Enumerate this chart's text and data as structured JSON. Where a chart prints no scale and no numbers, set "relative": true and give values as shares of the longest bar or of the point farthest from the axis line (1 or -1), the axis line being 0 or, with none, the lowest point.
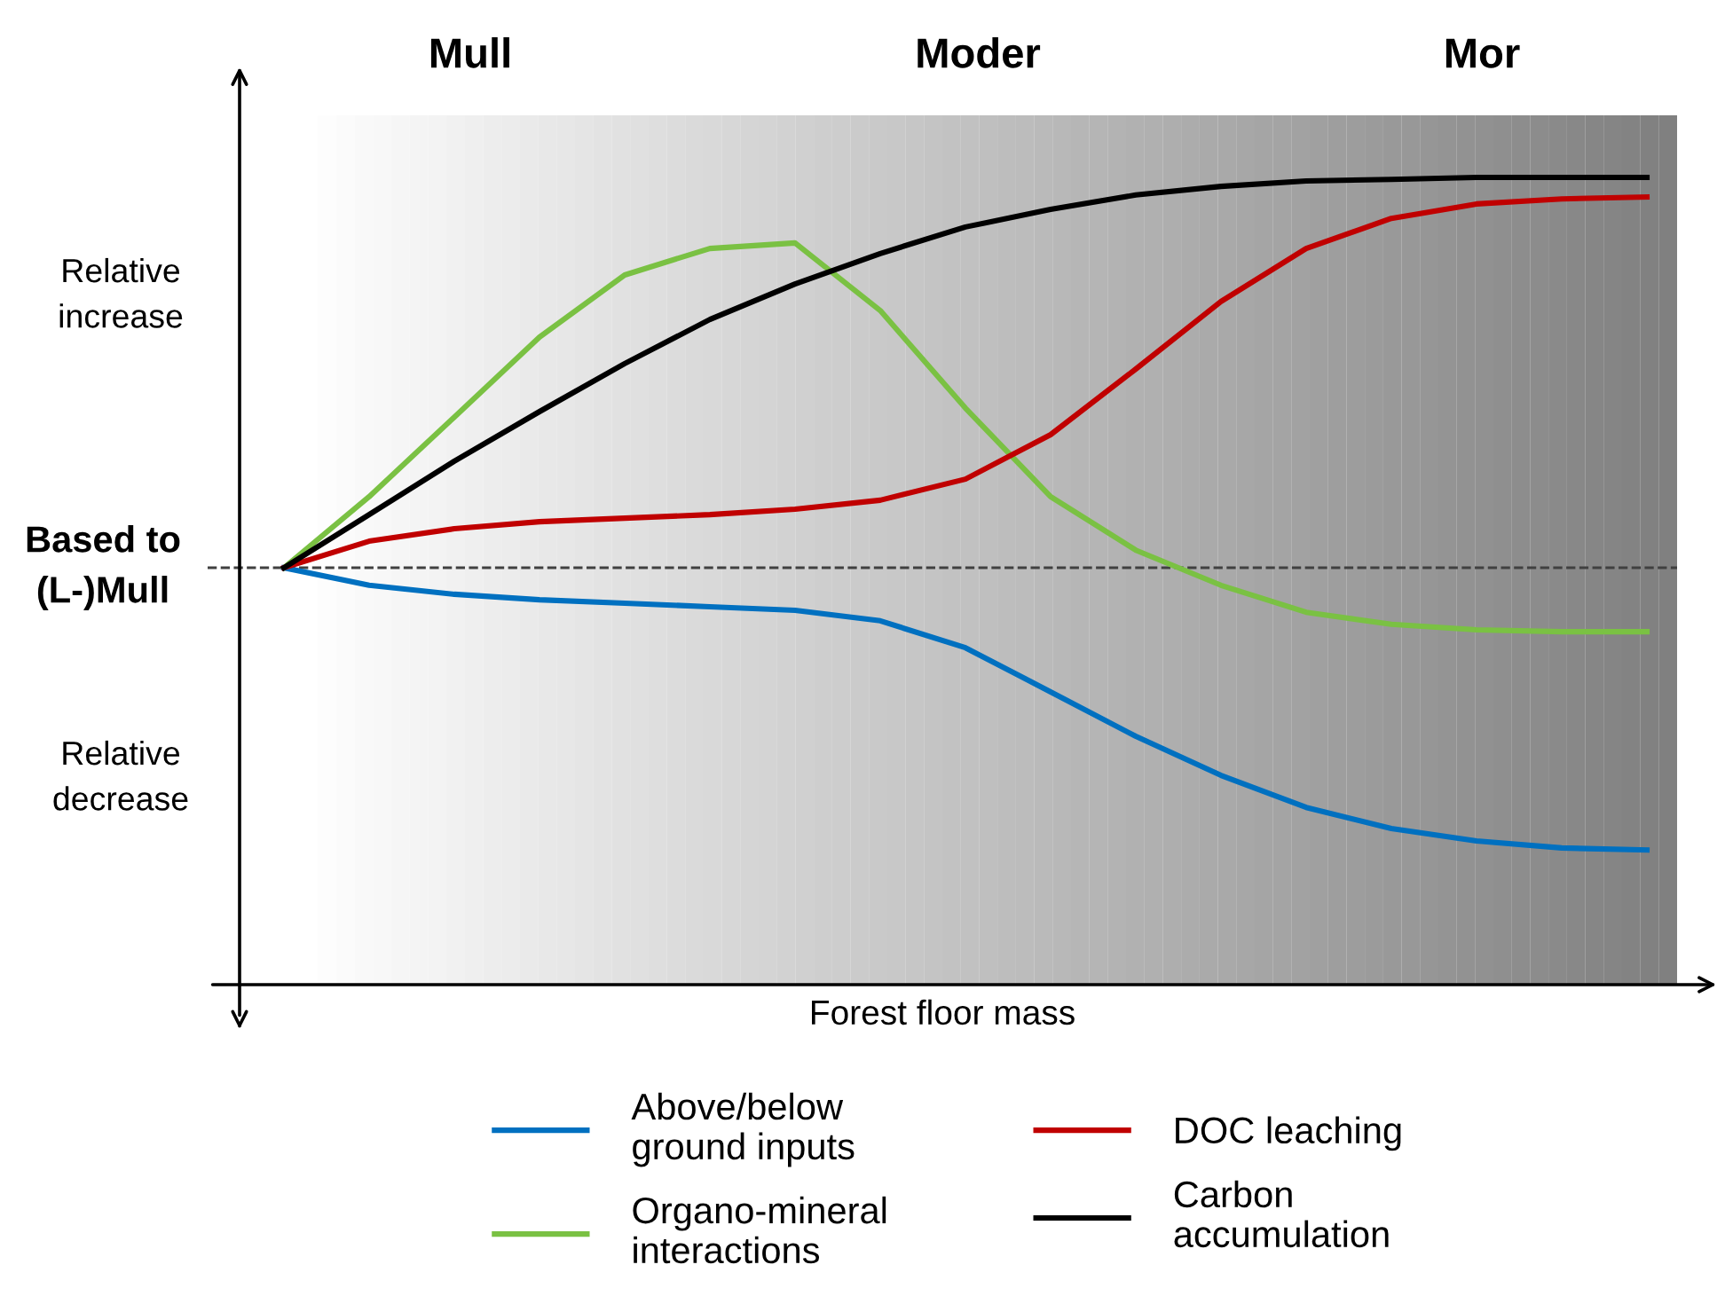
{
  "chart_data": {
    "type": "line",
    "relative": true,
    "xlabel": "Forest floor mass",
    "annotations": [
      "Mull",
      "Moder",
      "Mor",
      "Relative\nincrease",
      "Based to\n(L-)Mull",
      "Relative\ndecrease"
    ],
    "categories": [
      null,
      null,
      null,
      null,
      null,
      null,
      null,
      null,
      null,
      null,
      null,
      null,
      null,
      null,
      null,
      null,
      null
    ],
    "series": [
      {
        "name": "Above/below\nground inputs",
        "color": "#0070c0",
        "values": [
          0,
          -0.045,
          -0.068,
          -0.082,
          -0.091,
          -0.1,
          -0.109,
          -0.136,
          -0.205,
          -0.318,
          -0.432,
          -0.532,
          -0.614,
          -0.668,
          -0.7,
          -0.718,
          -0.723
        ]
      },
      {
        "name": "Organo-mineral\ninteractions",
        "color": "#7ac143",
        "values": [
          0,
          0.182,
          0.386,
          0.591,
          0.75,
          0.818,
          0.832,
          0.659,
          0.409,
          0.182,
          0.045,
          -0.045,
          -0.114,
          -0.145,
          -0.159,
          -0.164,
          -0.164
        ]
      },
      {
        "name": "DOC leaching",
        "color": "#c00000",
        "values": [
          0,
          0.068,
          0.1,
          0.118,
          0.127,
          0.136,
          0.15,
          0.173,
          0.227,
          0.341,
          0.509,
          0.682,
          0.818,
          0.895,
          0.932,
          0.945,
          0.95
        ]
      },
      {
        "name": "Carbon\naccumulation",
        "color": "#000000",
        "values": [
          0,
          0.136,
          0.273,
          0.4,
          0.523,
          0.636,
          0.727,
          0.805,
          0.873,
          0.918,
          0.955,
          0.977,
          0.991,
          0.995,
          1,
          1,
          1
        ]
      }
    ],
    "ref_lines": [
      {
        "axis": "y",
        "value": 0,
        "color": "#404040",
        "line_style": "dashed"
      }
    ],
    "legend": "bottom",
    "marker": "none",
    "line_style": "solid",
    "grid": false
  }
}
